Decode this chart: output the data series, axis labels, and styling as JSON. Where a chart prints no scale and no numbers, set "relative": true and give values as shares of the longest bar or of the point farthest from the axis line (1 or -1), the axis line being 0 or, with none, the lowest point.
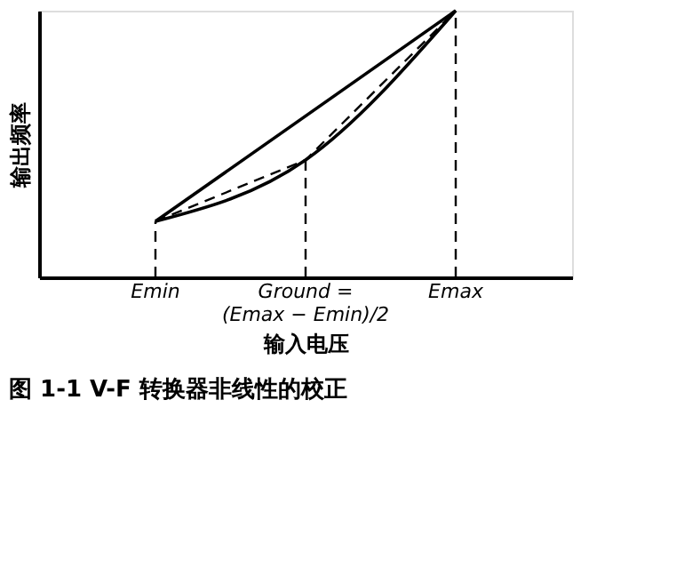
{
  "chart_data": {
    "type": "line",
    "title": "图 1-1 V-F 转换器非线性的校正",
    "xlabel": "输入电压",
    "ylabel": "输出频率",
    "relative": true,
    "categories": [
      "Emin",
      "Ground = (Emax − Emin)/2",
      "Emax"
    ],
    "series": [
      {
        "color": "#000000",
        "line_style": "solid",
        "x": [
          "Emin",
          "Emax"
        ],
        "values": [
          0.21,
          1
        ]
      },
      {
        "color": "#000000",
        "line_style": "solid",
        "values": [
          0.21,
          0.44,
          1
        ]
      },
      {
        "color": "#000000",
        "line_style": "dashed",
        "values": [
          0.21,
          0.44,
          1
        ]
      }
    ],
    "ref_lines": [
      {
        "axis": "x",
        "value": "Emin",
        "line_style": "dashed",
        "color": "#000000"
      },
      {
        "axis": "x",
        "value": "Ground = (Emax − Emin)/2",
        "line_style": "dashed",
        "color": "#000000"
      },
      {
        "axis": "x",
        "value": "Emax",
        "line_style": "dashed",
        "color": "#000000"
      }
    ]
  }
}
